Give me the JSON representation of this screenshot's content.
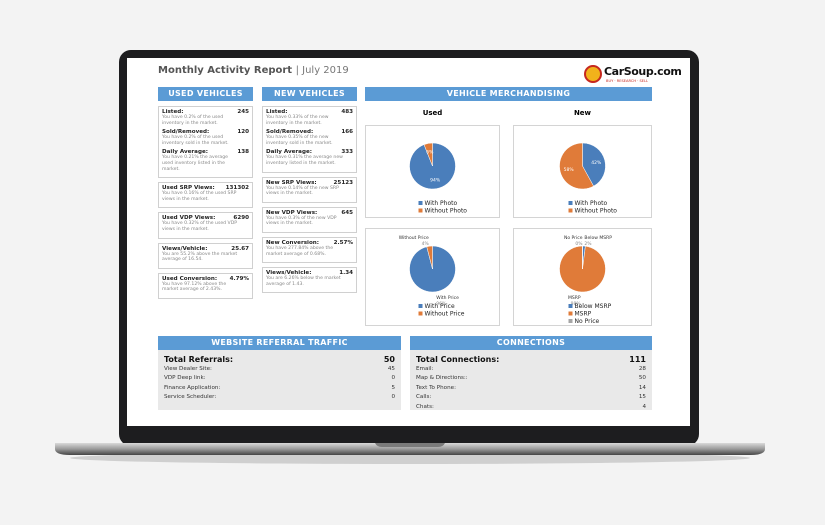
{
  "header": {
    "title": "Monthly Activity Report",
    "period": "| July 2019",
    "logo": "CarSoup.com",
    "tagline": "BUY · RESEARCH · SELL"
  },
  "used_vehicles": {
    "title": "USED VEHICLES",
    "cards": [
      [
        {
          "label": "Listed:",
          "value": 245,
          "note": "You have 0.2% of the used inventory in the market."
        },
        {
          "label": "Sold/Removed:",
          "value": 120,
          "note": "You have 0.2% of the used inventory sold in the market."
        },
        {
          "label": "Daily Average:",
          "value": 138,
          "note": "You have 0.21% the average used inventory listed in the market."
        }
      ],
      [
        {
          "label": "Used SRP Views:",
          "value": 131302,
          "note": "You have 0.16% of the used SRP views in the market."
        }
      ],
      [
        {
          "label": "Used VDP Views:",
          "value": 6290,
          "note": "You have 0.32% of the used VDP views in the market."
        }
      ],
      [
        {
          "label": "Views/Vehicle:",
          "value": 25.67,
          "note": "You are 55.2% above the market average of 16.54."
        }
      ],
      [
        {
          "label": "Used Conversion:",
          "value": "4.79%",
          "note": "You have 97.12% above the market average of 2.43%."
        }
      ]
    ]
  },
  "new_vehicles": {
    "title": "NEW VEHICLES",
    "cards": [
      [
        {
          "label": "Listed:",
          "value": 483,
          "note": "You have 0.33% of the new inventory in the market."
        },
        {
          "label": "Sold/Removed:",
          "value": 166,
          "note": "You have 0.35% of the new inventory sold in the market."
        },
        {
          "label": "Daily Average:",
          "value": 333,
          "note": "You have 0.31% the average new inventory listed in the market."
        }
      ],
      [
        {
          "label": "New SRP Views:",
          "value": 25123,
          "note": "You have 0.14% of the new SRP views in the market."
        }
      ],
      [
        {
          "label": "New VDP Views:",
          "value": 645,
          "note": "You have 0.3% of the new VDP views in the market."
        }
      ],
      [
        {
          "label": "New Conversion:",
          "value": "2.57%",
          "note": "You have 277.84% above the market average of 0.68%."
        }
      ],
      [
        {
          "label": "Views/Vehicle:",
          "value": 1.34,
          "note": "You are 6.26% below the market average of 1.43."
        }
      ]
    ]
  },
  "merchandising": {
    "title": "VEHICLE MERCHANDISING",
    "columns": [
      "Used",
      "New"
    ]
  },
  "chart_data": [
    {
      "type": "pie",
      "categories": [
        "With Photo",
        "Without Photo"
      ],
      "values": [
        94,
        6
      ],
      "value_labels": [
        "94%",
        "6%"
      ],
      "colors": [
        "#4a7ebb",
        "#e07b39"
      ],
      "label_position": "inside"
    },
    {
      "type": "pie",
      "categories": [
        "With Photo",
        "Without Photo"
      ],
      "values": [
        42,
        58
      ],
      "value_labels": [
        "42%",
        "58%"
      ],
      "colors": [
        "#4a7ebb",
        "#e07b39"
      ],
      "label_position": "inside"
    },
    {
      "type": "pie",
      "categories": [
        "With Price",
        "Without Price"
      ],
      "values": [
        96,
        4
      ],
      "value_labels": [
        "96%",
        "4%"
      ],
      "colors": [
        "#4a7ebb",
        "#e07b39"
      ],
      "label_position": "outside"
    },
    {
      "type": "pie",
      "categories": [
        "Below MSRP",
        "MSRP",
        "No Price"
      ],
      "values": [
        2,
        98,
        0
      ],
      "value_labels": [
        "2%",
        "98%",
        "0%"
      ],
      "colors": [
        "#4a7ebb",
        "#e07b39",
        "#a5a5a5"
      ],
      "label_position": "outside"
    }
  ],
  "referrals": {
    "title": "WEBSITE REFERRAL TRAFFIC",
    "total_label": "Total Referrals:",
    "total": 50,
    "rows": [
      [
        "View Dealer Site:",
        45
      ],
      [
        "VDP Deep link:",
        0
      ],
      [
        "Finance Application:",
        5
      ],
      [
        "Service Scheduler:",
        0
      ]
    ]
  },
  "connections": {
    "title": "CONNECTIONS",
    "total_label": "Total Connections:",
    "total": 111,
    "rows": [
      [
        "Email:",
        28
      ],
      [
        "Map & Directions::",
        50
      ],
      [
        "Text To Phone:",
        14
      ],
      [
        "Calls:",
        15
      ],
      [
        "Chats:",
        4
      ]
    ]
  }
}
